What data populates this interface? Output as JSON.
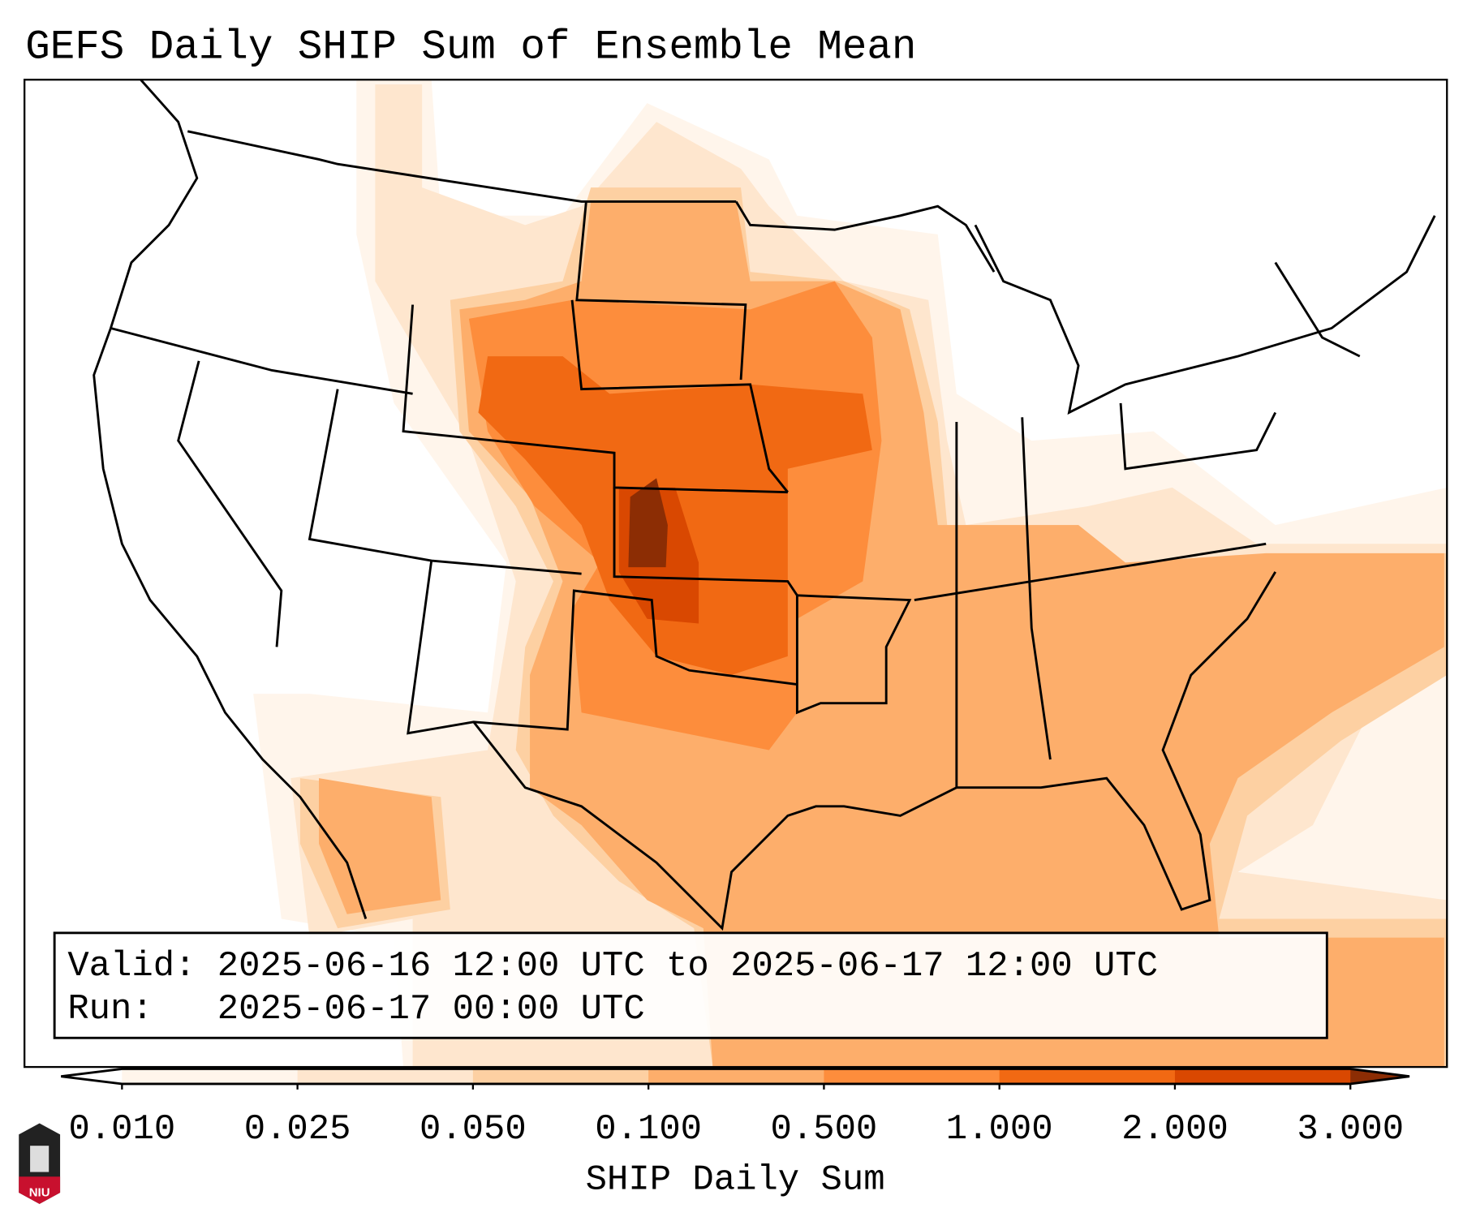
{
  "title": "GEFS Daily SHIP Sum of Ensemble Mean",
  "legend_box": {
    "valid_line": "Valid: 2025-06-16 12:00 UTC to 2025-06-17 12:00 UTC",
    "run_line": "Run:   2025-06-17 00:00 UTC"
  },
  "logo": {
    "text": "NIU"
  },
  "chart_data": {
    "type": "heatmap",
    "title": "GEFS Daily SHIP Sum of Ensemble Mean",
    "colorbar_label": "SHIP Daily Sum",
    "levels": [
      "0.010",
      "0.025",
      "0.050",
      "0.100",
      "0.500",
      "1.000",
      "2.000",
      "3.000"
    ],
    "colors": [
      "#fff5eb",
      "#fee6ce",
      "#fdd0a2",
      "#fdae6b",
      "#fd8d3c",
      "#f16913",
      "#d94801"
    ],
    "extend_min_color": "#ffffff",
    "extend_max_color": "#8c2d04",
    "region": "Contiguous United States"
  }
}
